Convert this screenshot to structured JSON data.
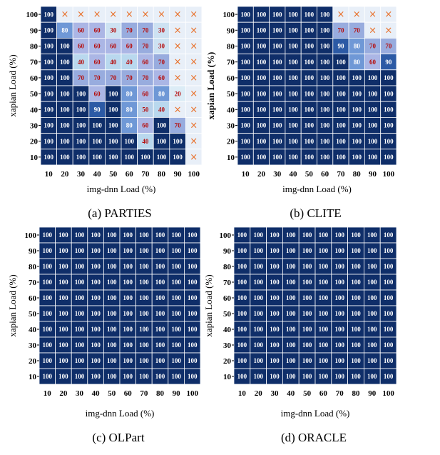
{
  "figure": {
    "bg": "#ffffff"
  },
  "colors": {
    "c100": "#0f2e69",
    "c90": "#2c5aa5",
    "c80": "#6f98d6",
    "c70": "#98acde",
    "c60": "#abb6e5",
    "c50": "#b7d0ea",
    "c40": "#b9d8ee",
    "c30": "#cde2f2",
    "c20": "#dcecf6",
    "cx": "#e8eff8",
    "text_light": "#ffffff",
    "text_dark": "#b50e0e",
    "cross": "#e8702a",
    "grid": "#ffffff"
  },
  "chart_data": [
    {
      "type": "heatmap",
      "id": "parties",
      "caption": "(a) PARTIES",
      "xlabel": "img-dnn Load (%)",
      "ylabel": "xapian Load (%)",
      "x_ticks": [
        "10",
        "20",
        "30",
        "40",
        "50",
        "60",
        "70",
        "80",
        "90",
        "100"
      ],
      "y_ticks": [
        "100",
        "90",
        "80",
        "70",
        "60",
        "50",
        "40",
        "30",
        "20",
        "10"
      ],
      "cells": [
        [
          100,
          "x",
          "x",
          "x",
          "x",
          "x",
          "x",
          "x",
          "x",
          "x"
        ],
        [
          100,
          80,
          60,
          60,
          30,
          70,
          70,
          30,
          "x",
          "x"
        ],
        [
          100,
          100,
          60,
          60,
          60,
          60,
          70,
          30,
          "x",
          "x"
        ],
        [
          100,
          100,
          40,
          60,
          40,
          40,
          60,
          70,
          "x",
          "x"
        ],
        [
          100,
          100,
          70,
          70,
          70,
          70,
          70,
          60,
          "x",
          "x"
        ],
        [
          100,
          100,
          100,
          60,
          100,
          80,
          60,
          80,
          20,
          "x"
        ],
        [
          100,
          100,
          100,
          90,
          100,
          80,
          50,
          40,
          "x",
          "x"
        ],
        [
          100,
          100,
          100,
          100,
          100,
          80,
          60,
          100,
          70,
          "x"
        ],
        [
          100,
          100,
          100,
          100,
          100,
          100,
          40,
          100,
          100,
          "x"
        ],
        [
          100,
          100,
          100,
          100,
          100,
          100,
          100,
          100,
          100,
          "x"
        ]
      ]
    },
    {
      "type": "heatmap",
      "id": "clite",
      "caption": "(b) CLITE",
      "xlabel": "img-dnn Load (%)",
      "ylabel": "xapian Load (%)",
      "x_ticks": [
        "10",
        "20",
        "30",
        "40",
        "50",
        "60",
        "70",
        "80",
        "90",
        "100"
      ],
      "y_ticks": [
        "100",
        "90",
        "80",
        "70",
        "60",
        "50",
        "40",
        "30",
        "20",
        "10"
      ],
      "cells": [
        [
          100,
          100,
          100,
          100,
          100,
          100,
          "x",
          "x",
          "x",
          "x"
        ],
        [
          100,
          100,
          100,
          100,
          100,
          100,
          70,
          70,
          "x",
          "x"
        ],
        [
          100,
          100,
          100,
          100,
          100,
          100,
          90,
          80,
          70,
          70
        ],
        [
          100,
          100,
          100,
          100,
          100,
          100,
          100,
          80,
          60,
          90
        ],
        [
          100,
          100,
          100,
          100,
          100,
          100,
          100,
          100,
          100,
          100
        ],
        [
          100,
          100,
          100,
          100,
          100,
          100,
          100,
          100,
          100,
          100
        ],
        [
          100,
          100,
          100,
          100,
          100,
          100,
          100,
          100,
          100,
          100
        ],
        [
          100,
          100,
          100,
          100,
          100,
          100,
          100,
          100,
          100,
          100
        ],
        [
          100,
          100,
          100,
          100,
          100,
          100,
          100,
          100,
          100,
          100
        ],
        [
          100,
          100,
          100,
          100,
          100,
          100,
          100,
          100,
          100,
          100
        ]
      ]
    },
    {
      "type": "heatmap",
      "id": "olpart",
      "caption": "(c) OLPart",
      "xlabel": "img-dnn Load (%)",
      "ylabel": "xapian Load (%)",
      "x_ticks": [
        "10",
        "20",
        "30",
        "40",
        "50",
        "60",
        "70",
        "80",
        "90",
        "100"
      ],
      "y_ticks": [
        "100",
        "90",
        "80",
        "70",
        "60",
        "50",
        "40",
        "30",
        "20",
        "10"
      ],
      "cells": [
        [
          100,
          100,
          100,
          100,
          100,
          100,
          100,
          100,
          100,
          100
        ],
        [
          100,
          100,
          100,
          100,
          100,
          100,
          100,
          100,
          100,
          100
        ],
        [
          100,
          100,
          100,
          100,
          100,
          100,
          100,
          100,
          100,
          100
        ],
        [
          100,
          100,
          100,
          100,
          100,
          100,
          100,
          100,
          100,
          100
        ],
        [
          100,
          100,
          100,
          100,
          100,
          100,
          100,
          100,
          100,
          100
        ],
        [
          100,
          100,
          100,
          100,
          100,
          100,
          100,
          100,
          100,
          100
        ],
        [
          100,
          100,
          100,
          100,
          100,
          100,
          100,
          100,
          100,
          100
        ],
        [
          100,
          100,
          100,
          100,
          100,
          100,
          100,
          100,
          100,
          100
        ],
        [
          100,
          100,
          100,
          100,
          100,
          100,
          100,
          100,
          100,
          100
        ],
        [
          100,
          100,
          100,
          100,
          100,
          100,
          100,
          100,
          100,
          100
        ]
      ]
    },
    {
      "type": "heatmap",
      "id": "oracle",
      "caption": "(d) ORACLE",
      "xlabel": "img-dnn Load (%)",
      "ylabel": "xapian Load (%)",
      "x_ticks": [
        "10",
        "20",
        "30",
        "40",
        "50",
        "60",
        "70",
        "80",
        "90",
        "100"
      ],
      "y_ticks": [
        "100",
        "90",
        "80",
        "70",
        "60",
        "50",
        "40",
        "30",
        "20",
        "10"
      ],
      "cells": [
        [
          100,
          100,
          100,
          100,
          100,
          100,
          100,
          100,
          100,
          100
        ],
        [
          100,
          100,
          100,
          100,
          100,
          100,
          100,
          100,
          100,
          100
        ],
        [
          100,
          100,
          100,
          100,
          100,
          100,
          100,
          100,
          100,
          100
        ],
        [
          100,
          100,
          100,
          100,
          100,
          100,
          100,
          100,
          100,
          100
        ],
        [
          100,
          100,
          100,
          100,
          100,
          100,
          100,
          100,
          100,
          100
        ],
        [
          100,
          100,
          100,
          100,
          100,
          100,
          100,
          100,
          100,
          100
        ],
        [
          100,
          100,
          100,
          100,
          100,
          100,
          100,
          100,
          100,
          100
        ],
        [
          100,
          100,
          100,
          100,
          100,
          100,
          100,
          100,
          100,
          100
        ],
        [
          100,
          100,
          100,
          100,
          100,
          100,
          100,
          100,
          100,
          100
        ],
        [
          100,
          100,
          100,
          100,
          100,
          100,
          100,
          100,
          100,
          100
        ]
      ]
    }
  ]
}
